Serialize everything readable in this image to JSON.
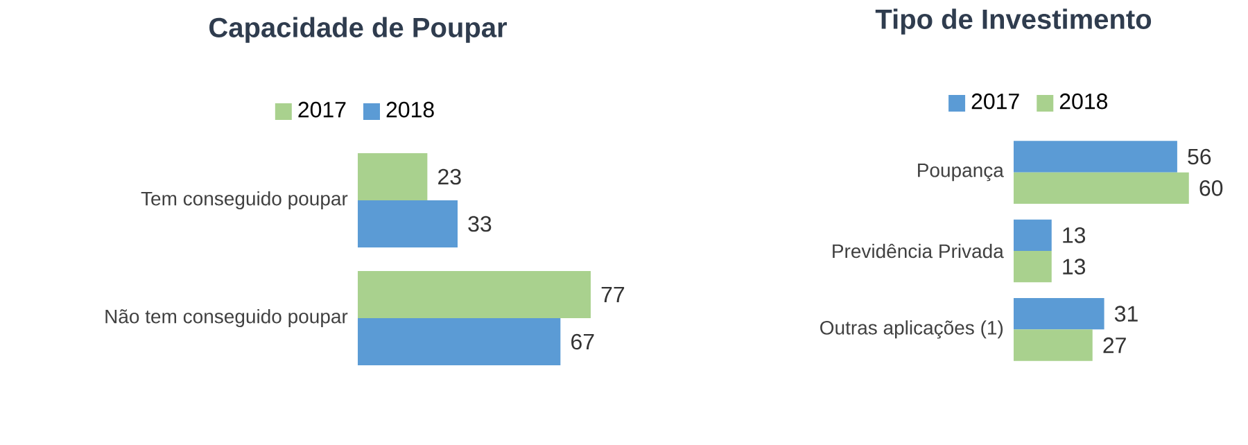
{
  "chart_data": [
    {
      "type": "bar",
      "orientation": "horizontal",
      "title": "Capacidade de Poupar",
      "categories": [
        "Tem conseguido poupar",
        "Não tem conseguido poupar"
      ],
      "series": [
        {
          "name": "2017",
          "color": "#a9d18e",
          "values": [
            23,
            77
          ]
        },
        {
          "name": "2018",
          "color": "#5b9bd5",
          "values": [
            33,
            67
          ]
        }
      ],
      "data_labels": true,
      "legend": "top"
    },
    {
      "type": "bar",
      "orientation": "horizontal",
      "title": "Tipo de Investimento",
      "categories": [
        "Poupança",
        "Previdência Privada",
        "Outras aplicações (1)"
      ],
      "series": [
        {
          "name": "2017",
          "color": "#5b9bd5",
          "values": [
            56,
            13,
            31
          ]
        },
        {
          "name": "2018",
          "color": "#a9d18e",
          "values": [
            60,
            13,
            27
          ]
        }
      ],
      "data_labels": true,
      "legend": "top"
    }
  ]
}
